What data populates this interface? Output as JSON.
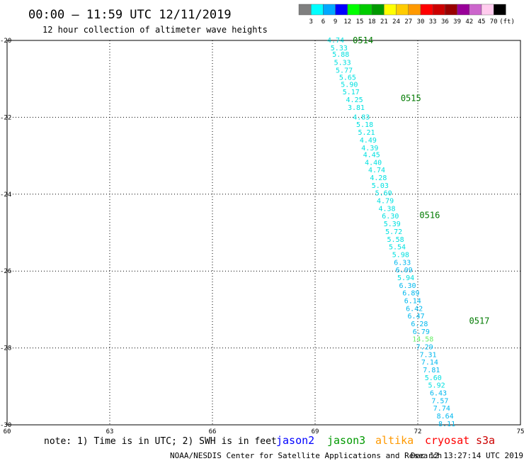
{
  "title": "00:00 — 11:59 UTC 12/11/2019",
  "subtitle": "12 hour collection of altimeter wave heights",
  "colorbar": {
    "unit": "(ft)",
    "ticks": [
      "3",
      "6",
      "9",
      "12",
      "15",
      "18",
      "21",
      "24",
      "27",
      "30",
      "33",
      "36",
      "39",
      "42",
      "45",
      "70"
    ],
    "colors": [
      "#7f7f7f",
      "#00ffff",
      "#00a8ff",
      "#0000ff",
      "#00ff00",
      "#00cc00",
      "#009900",
      "#ffff00",
      "#ffcc00",
      "#ff9900",
      "#ff0000",
      "#cc0000",
      "#990000",
      "#990099",
      "#cc66cc",
      "#ffccee",
      "#000000"
    ]
  },
  "note": "note: 1) Time is in UTC; 2) SWH is in feet",
  "satellites": [
    {
      "name": "jason2",
      "color": "#0000ff"
    },
    {
      "name": "jason3",
      "color": "#009900"
    },
    {
      "name": "altika",
      "color": "#ff9900"
    },
    {
      "name": "cryosat",
      "color": "#ff0000"
    },
    {
      "name": "s3a",
      "color": "#cc0000"
    }
  ],
  "credit": "NOAA/NESDIS Center for Satellite Applications and Research",
  "timestamp": "Dec 12 13:27:14 UTC 2019",
  "chart_data": {
    "type": "scatter",
    "xlim": [
      60,
      75
    ],
    "ylim": [
      -30,
      -20
    ],
    "x_ticks": [
      "60",
      "63",
      "66",
      "69",
      "72",
      "75"
    ],
    "y_ticks": [
      "-20",
      "-22",
      "-24",
      "-26",
      "-28",
      "-30"
    ],
    "grid": true,
    "points": [
      {
        "x": 69.6,
        "y": -20.0,
        "v": "4.74",
        "c": "#00e0e0"
      },
      {
        "x": 69.7,
        "y": -20.2,
        "v": "5.33",
        "c": "#00e0e0"
      },
      {
        "x": 69.75,
        "y": -20.37,
        "v": "5.88",
        "c": "#00e0e0"
      },
      {
        "x": 69.8,
        "y": -20.58,
        "v": "5.33",
        "c": "#00e0e0"
      },
      {
        "x": 69.85,
        "y": -20.78,
        "v": "5.77",
        "c": "#00e0e0"
      },
      {
        "x": 69.95,
        "y": -20.97,
        "v": "5.65",
        "c": "#00e0e0"
      },
      {
        "x": 70.0,
        "y": -21.15,
        "v": "5.90",
        "c": "#00e0e0"
      },
      {
        "x": 70.05,
        "y": -21.35,
        "v": "5.17",
        "c": "#00e0e0"
      },
      {
        "x": 70.15,
        "y": -21.55,
        "v": "4.25",
        "c": "#00e0e0"
      },
      {
        "x": 70.2,
        "y": -21.75,
        "v": "3.81",
        "c": "#00e0e0"
      },
      {
        "x": 70.35,
        "y": -22.0,
        "v": "4.83",
        "c": "#00e0e0"
      },
      {
        "x": 70.45,
        "y": -22.2,
        "v": "5.18",
        "c": "#00e0e0"
      },
      {
        "x": 70.5,
        "y": -22.4,
        "v": "5.21",
        "c": "#00e0e0"
      },
      {
        "x": 70.55,
        "y": -22.6,
        "v": "4.49",
        "c": "#00e0e0"
      },
      {
        "x": 70.6,
        "y": -22.8,
        "v": "4.39",
        "c": "#00e0e0"
      },
      {
        "x": 70.65,
        "y": -22.98,
        "v": "4.45",
        "c": "#00e0e0"
      },
      {
        "x": 70.7,
        "y": -23.18,
        "v": "4.40",
        "c": "#00e0e0"
      },
      {
        "x": 70.8,
        "y": -23.38,
        "v": "4.74",
        "c": "#00e0e0"
      },
      {
        "x": 70.85,
        "y": -23.58,
        "v": "4.28",
        "c": "#00e0e0"
      },
      {
        "x": 70.9,
        "y": -23.78,
        "v": "5.03",
        "c": "#00e0e0"
      },
      {
        "x": 71.0,
        "y": -23.98,
        "v": "5.60",
        "c": "#00e0e0"
      },
      {
        "x": 71.05,
        "y": -24.18,
        "v": "4.79",
        "c": "#00e0e0"
      },
      {
        "x": 71.1,
        "y": -24.38,
        "v": "4.38",
        "c": "#00e0e0"
      },
      {
        "x": 71.2,
        "y": -24.58,
        "v": "6.30",
        "c": "#00e0e0"
      },
      {
        "x": 71.25,
        "y": -24.78,
        "v": "5.39",
        "c": "#00e0e0"
      },
      {
        "x": 71.3,
        "y": -24.98,
        "v": "5.72",
        "c": "#00e0e0"
      },
      {
        "x": 71.35,
        "y": -25.18,
        "v": "5.58",
        "c": "#00e0e0"
      },
      {
        "x": 71.4,
        "y": -25.38,
        "v": "5.54",
        "c": "#00e0e0"
      },
      {
        "x": 71.5,
        "y": -25.58,
        "v": "5.98",
        "c": "#00e0e0"
      },
      {
        "x": 71.55,
        "y": -25.78,
        "v": "6.33",
        "c": "#00b8ee"
      },
      {
        "x": 71.6,
        "y": -25.98,
        "v": "6.09",
        "c": "#00b8ee"
      },
      {
        "x": 71.65,
        "y": -26.18,
        "v": "5.94",
        "c": "#00e0e0"
      },
      {
        "x": 71.7,
        "y": -26.38,
        "v": "6.30",
        "c": "#00b8ee"
      },
      {
        "x": 71.8,
        "y": -26.58,
        "v": "6.89",
        "c": "#00b8ee"
      },
      {
        "x": 71.85,
        "y": -26.78,
        "v": "6.14",
        "c": "#00b8ee"
      },
      {
        "x": 71.9,
        "y": -26.98,
        "v": "6.42",
        "c": "#00b8ee"
      },
      {
        "x": 71.95,
        "y": -27.18,
        "v": "6.47",
        "c": "#00b8ee"
      },
      {
        "x": 72.05,
        "y": -27.38,
        "v": "6.28",
        "c": "#00b8ee"
      },
      {
        "x": 72.1,
        "y": -27.58,
        "v": "6.79",
        "c": "#00b8ee"
      },
      {
        "x": 72.15,
        "y": -27.78,
        "v": "14.58",
        "c": "#66ee66"
      },
      {
        "x": 72.2,
        "y": -27.98,
        "v": "7.29",
        "c": "#00b8ee"
      },
      {
        "x": 72.3,
        "y": -28.18,
        "v": "7.31",
        "c": "#00b8ee"
      },
      {
        "x": 72.35,
        "y": -28.38,
        "v": "7.14",
        "c": "#00b8ee"
      },
      {
        "x": 72.4,
        "y": -28.58,
        "v": "7.81",
        "c": "#00b8ee"
      },
      {
        "x": 72.45,
        "y": -28.78,
        "v": "5.60",
        "c": "#00e0e0"
      },
      {
        "x": 72.55,
        "y": -28.98,
        "v": "5.92",
        "c": "#00e0e0"
      },
      {
        "x": 72.6,
        "y": -29.18,
        "v": "6.43",
        "c": "#00b8ee"
      },
      {
        "x": 72.65,
        "y": -29.38,
        "v": "7.57",
        "c": "#00b8ee"
      },
      {
        "x": 72.7,
        "y": -29.58,
        "v": "7.74",
        "c": "#00b8ee"
      },
      {
        "x": 72.8,
        "y": -29.78,
        "v": "8.64",
        "c": "#00b8ee"
      },
      {
        "x": 72.85,
        "y": -29.98,
        "v": "8.11",
        "c": "#00b8ee"
      }
    ],
    "pass_labels": [
      {
        "x": 70.1,
        "y": -20.0,
        "text": "0514"
      },
      {
        "x": 71.5,
        "y": -21.5,
        "text": "0515"
      },
      {
        "x": 72.05,
        "y": -24.55,
        "text": "0516"
      },
      {
        "x": 73.5,
        "y": -27.3,
        "text": "0517"
      }
    ]
  }
}
